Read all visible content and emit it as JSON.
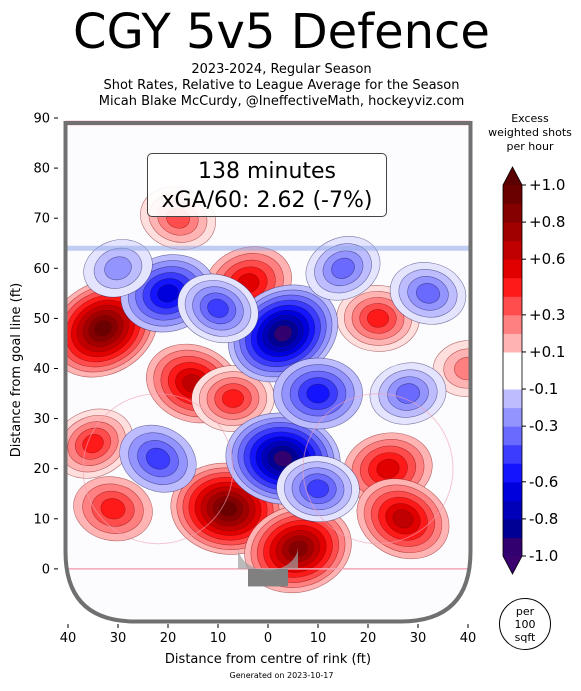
{
  "header": {
    "title": "CGY 5v5 Defence",
    "subtitle_lines": [
      "2023-2024, Regular Season",
      "Shot Rates, Relative to League Average for the Season",
      "Micah Blake McCurdy, @IneffectiveMath, hockeyviz.com"
    ]
  },
  "annotation": {
    "minutes": "138 minutes",
    "xga": "xGA/60: 2.62 (-7%)"
  },
  "colorbar": {
    "title_lines": [
      "Excess",
      "weighted shots",
      "per hour"
    ],
    "ticks": [
      {
        "value": 1.0,
        "label": "+1.0"
      },
      {
        "value": 0.8,
        "label": "+0.8"
      },
      {
        "value": 0.6,
        "label": "+0.6"
      },
      {
        "value": 0.3,
        "label": "+0.3"
      },
      {
        "value": 0.1,
        "label": "+0.1"
      },
      {
        "value": -0.1,
        "label": "-0.1"
      },
      {
        "value": -0.3,
        "label": "-0.3"
      },
      {
        "value": -0.6,
        "label": "-0.6"
      },
      {
        "value": -0.8,
        "label": "-0.8"
      },
      {
        "value": -1.0,
        "label": "-1.0"
      }
    ],
    "badge_lines": [
      "per",
      "100",
      "sqft"
    ]
  },
  "footer": "Generated on 2023-10-17",
  "colors": {
    "red": "#c00000",
    "blue": "#0000cc",
    "rink": "#707070"
  },
  "chart_data": {
    "type": "heatmap",
    "xlabel": "Distance from centre of rink (ft)",
    "ylabel": "Distance from goal line (ft)",
    "xlim": [
      -42,
      42
    ],
    "ylim": [
      -11,
      90
    ],
    "x_ticks": [
      {
        "v": -40,
        "l": "40"
      },
      {
        "v": -30,
        "l": "30"
      },
      {
        "v": -20,
        "l": "20"
      },
      {
        "v": -10,
        "l": "10"
      },
      {
        "v": 0,
        "l": "0"
      },
      {
        "v": 10,
        "l": "10"
      },
      {
        "v": 20,
        "l": "20"
      },
      {
        "v": 30,
        "l": "30"
      },
      {
        "v": 40,
        "l": "40"
      }
    ],
    "y_ticks": [
      0,
      10,
      20,
      30,
      40,
      50,
      60,
      70,
      80,
      90
    ],
    "hotspots": [
      {
        "x": -33,
        "y": 48,
        "v": 1.0
      },
      {
        "x": -8,
        "y": 12,
        "v": 1.0
      },
      {
        "x": 6,
        "y": 4,
        "v": 0.9
      },
      {
        "x": -15,
        "y": 37,
        "v": 0.7
      },
      {
        "x": -7,
        "y": 34,
        "v": 0.5
      },
      {
        "x": -35,
        "y": 25,
        "v": 0.5
      },
      {
        "x": -31,
        "y": 12,
        "v": 0.45
      },
      {
        "x": 24,
        "y": 20,
        "v": 0.6
      },
      {
        "x": 27,
        "y": 10,
        "v": 0.7
      },
      {
        "x": 22,
        "y": 50,
        "v": 0.5
      },
      {
        "x": -4,
        "y": 57,
        "v": 0.6
      },
      {
        "x": -18,
        "y": 70,
        "v": 0.4
      },
      {
        "x": 40,
        "y": 40,
        "v": 0.3
      },
      {
        "x": 3,
        "y": 47,
        "v": -1.0
      },
      {
        "x": 3,
        "y": 22,
        "v": -1.0
      },
      {
        "x": -20,
        "y": 55,
        "v": -0.7
      },
      {
        "x": -10,
        "y": 52,
        "v": -0.5
      },
      {
        "x": 10,
        "y": 35,
        "v": -0.6
      },
      {
        "x": 15,
        "y": 60,
        "v": -0.4
      },
      {
        "x": 32,
        "y": 55,
        "v": -0.4
      },
      {
        "x": 28,
        "y": 35,
        "v": -0.4
      },
      {
        "x": -22,
        "y": 22,
        "v": -0.45
      },
      {
        "x": 10,
        "y": 16,
        "v": -0.5
      },
      {
        "x": -30,
        "y": 60,
        "v": -0.3
      }
    ]
  }
}
